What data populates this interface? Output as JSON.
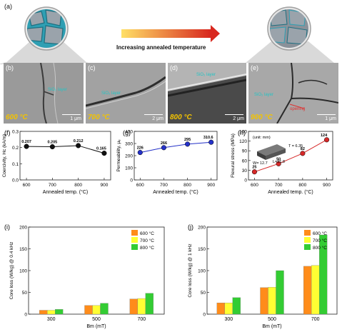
{
  "panel_a": {
    "label": "(a)",
    "arrow_text": "Increasing annealed temperature"
  },
  "sem_panels": [
    {
      "letter": "(b)",
      "temp": "600 °C",
      "scale": "1 μm",
      "note": "SiO₂ layer"
    },
    {
      "letter": "(c)",
      "temp": "700 °C",
      "scale": "2 μm",
      "note": "SiO₂ layer"
    },
    {
      "letter": "(d)",
      "temp": "800 °C",
      "scale": "2 μm",
      "note": "SiO₂ layer"
    },
    {
      "letter": "(e)",
      "temp": "900 °C",
      "scale": "1 μm",
      "note": "SiO₂ layer",
      "extra": "opening"
    }
  ],
  "colors": {
    "arrow_start": "#ffe066",
    "arrow_end": "#d8281f",
    "bar_600": "#ff8c1a",
    "bar_700": "#ffff33",
    "bar_800": "#33cc33",
    "coercivity": "#111111",
    "permeability": "#2431c8",
    "flexural": "#d62828"
  },
  "chart_data": [
    {
      "id": "f",
      "panel_label": "(f)",
      "type": "line",
      "x": [
        600,
        700,
        800,
        900
      ],
      "y": [
        0.207,
        0.205,
        0.212,
        0.165
      ],
      "data_labels": [
        "0.207",
        "0.205",
        "0.212",
        "0.165"
      ],
      "xlabel": "Annealed temp. (°C)",
      "ylabel": "Coercivity, Hc (kA/m)",
      "ylim": [
        0.0,
        0.3
      ],
      "xticks": [
        "600",
        "700",
        "800",
        "900"
      ],
      "yticks": [
        "0.0",
        "0.1",
        "0.2",
        "0.3"
      ]
    },
    {
      "id": "g",
      "panel_label": "(g)",
      "type": "line",
      "x": [
        600,
        700,
        800,
        900
      ],
      "y": [
        226,
        266,
        295,
        310.6
      ],
      "data_labels": [
        "226",
        "266",
        "295",
        "310.6"
      ],
      "xlabel": "Annealed temp. (°C)",
      "ylabel": "Permeability, μₑ",
      "ylim": [
        0,
        400
      ],
      "xticks": [
        "600",
        "700",
        "800",
        "900"
      ],
      "yticks": [
        "0",
        "100",
        "200",
        "300",
        "400"
      ]
    },
    {
      "id": "h",
      "panel_label": "(h)",
      "type": "line",
      "x": [
        600,
        700,
        800,
        900
      ],
      "y": [
        25,
        50,
        82,
        124
      ],
      "data_labels": [
        "25",
        "50",
        "82",
        "124"
      ],
      "xlabel": "Annealed temp. (°C)",
      "ylabel": "Flexural stress (MPa)",
      "ylim": [
        0,
        150
      ],
      "xticks": [
        "600",
        "700",
        "800",
        "900"
      ],
      "yticks": [
        "0",
        "30",
        "60",
        "90",
        "120",
        "150"
      ],
      "inset": {
        "unit": "(unit: mm)",
        "T": "T = 6.35",
        "W": "W= 12.7",
        "L": "L=31.8"
      }
    },
    {
      "id": "i",
      "panel_label": "(i)",
      "type": "bar",
      "categories": [
        "300",
        "500",
        "700"
      ],
      "series": [
        {
          "name": "600 °C",
          "values": [
            9,
            20,
            35
          ]
        },
        {
          "name": "700 °C",
          "values": [
            9,
            20,
            36
          ]
        },
        {
          "name": "800 °C",
          "values": [
            11,
            25,
            48
          ]
        }
      ],
      "xlabel": "Bm (mT)",
      "ylabel": "Core loss (W/kg) @ 0.4 kHz",
      "ylim": [
        0,
        200
      ],
      "yticks": [
        "0",
        "50",
        "100",
        "150",
        "200"
      ]
    },
    {
      "id": "j",
      "panel_label": "(j)",
      "type": "bar",
      "categories": [
        "300",
        "500",
        "700"
      ],
      "series": [
        {
          "name": "600 °C",
          "values": [
            26,
            61,
            110
          ]
        },
        {
          "name": "700 °C",
          "values": [
            26,
            62,
            112
          ]
        },
        {
          "name": "800 °C",
          "values": [
            38,
            100,
            182
          ]
        }
      ],
      "xlabel": "Bm (mT)",
      "ylabel": "Core loss (W/kg) @ 1 kHz",
      "ylim": [
        0,
        200
      ],
      "yticks": [
        "0",
        "50",
        "100",
        "150",
        "200"
      ]
    }
  ]
}
